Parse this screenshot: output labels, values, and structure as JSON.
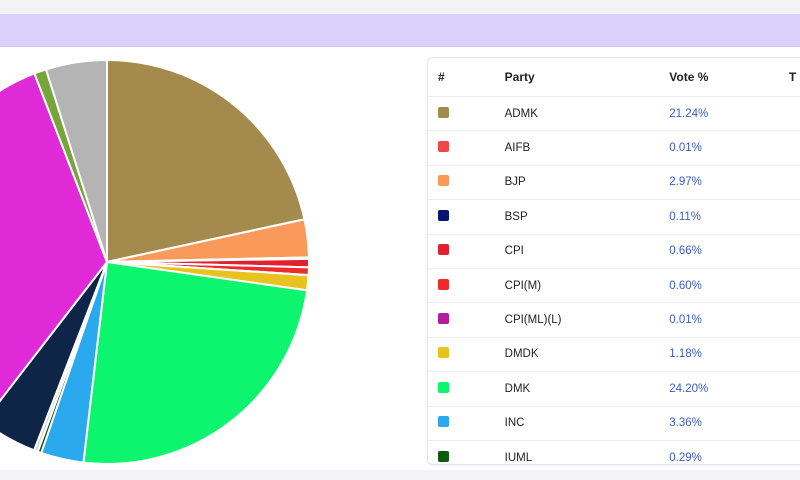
{
  "table": {
    "headers": {
      "num": "#",
      "party": "Party",
      "vote": "Vote %",
      "extra": "T"
    },
    "rows": [
      {
        "party": "ADMK",
        "vote": "21.24%",
        "color": "#a58a4e"
      },
      {
        "party": "AIFB",
        "vote": "0.01%",
        "color": "#f04848"
      },
      {
        "party": "BJP",
        "vote": "2.97%",
        "color": "#fa9a5a"
      },
      {
        "party": "BSP",
        "vote": "0.11%",
        "color": "#0a1470"
      },
      {
        "party": "CPI",
        "vote": "0.66%",
        "color": "#e3202e"
      },
      {
        "party": "CPI(M)",
        "vote": "0.60%",
        "color": "#ee2a2a"
      },
      {
        "party": "CPI(ML)(L)",
        "vote": "0.01%",
        "color": "#b01e9e"
      },
      {
        "party": "DMDK",
        "vote": "1.18%",
        "color": "#e8c21e"
      },
      {
        "party": "DMK",
        "vote": "24.20%",
        "color": "#0df56e"
      },
      {
        "party": "INC",
        "vote": "3.36%",
        "color": "#2aa9ee"
      },
      {
        "party": "IUML",
        "vote": "0.29%",
        "color": "#0c5c10"
      }
    ]
  },
  "chart_data": {
    "type": "pie",
    "title": "",
    "start_angle_deg": 0,
    "direction": "clockwise",
    "slices": [
      {
        "label": "ADMK",
        "value": 21.24,
        "color": "#a58a4e"
      },
      {
        "label": "AIFB",
        "value": 0.01,
        "color": "#f04848"
      },
      {
        "label": "BJP",
        "value": 2.97,
        "color": "#fa9a5a"
      },
      {
        "label": "BSP",
        "value": 0.11,
        "color": "#0a1470"
      },
      {
        "label": "CPI",
        "value": 0.66,
        "color": "#e3202e"
      },
      {
        "label": "CPI(M)",
        "value": 0.6,
        "color": "#ee2a2a"
      },
      {
        "label": "CPI(ML)(L)",
        "value": 0.01,
        "color": "#b01e9e"
      },
      {
        "label": "DMDK",
        "value": 1.18,
        "color": "#e8c21e"
      },
      {
        "label": "DMK",
        "value": 24.2,
        "color": "#0df56e"
      },
      {
        "label": "INC",
        "value": 3.36,
        "color": "#2aa9ee"
      },
      {
        "label": "IUML",
        "value": 0.29,
        "color": "#0c5c10"
      },
      {
        "label": "",
        "value": 0.3,
        "color": "#d8d8d8"
      },
      {
        "label": "",
        "value": 4.5,
        "color": "#0e2548"
      },
      {
        "label": "",
        "value": 33.12,
        "color": "#e02ad8"
      },
      {
        "label": "",
        "value": 0.95,
        "color": "#77a53a"
      },
      {
        "label": "",
        "value": 4.8,
        "color": "#b4b4b4"
      }
    ]
  }
}
